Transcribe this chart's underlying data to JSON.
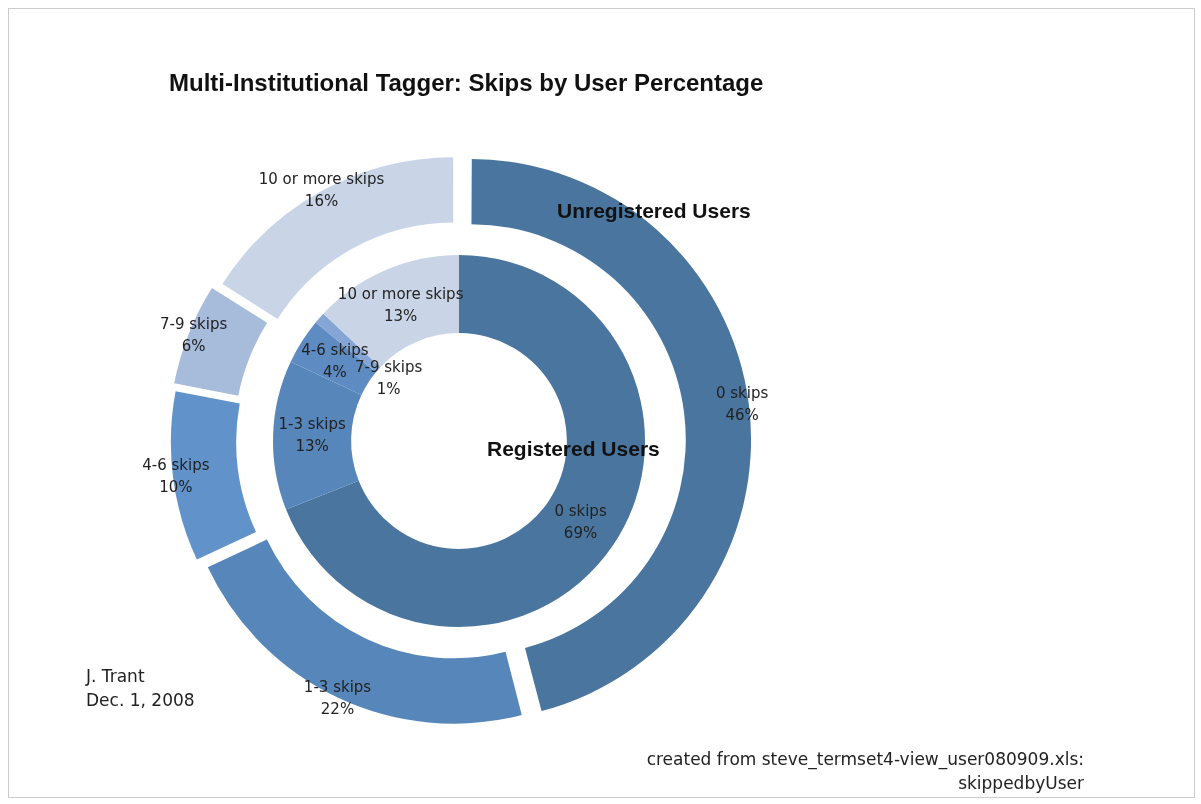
{
  "chart_data": {
    "type": "donut",
    "title": "Multi-Institutional Tagger: Skips by User Percentage",
    "categories": [
      "0 skips",
      "1-3 skips",
      "4-6 skips",
      "7-9 skips",
      "10 or more skips"
    ],
    "series": [
      {
        "name": "Unregistered Users",
        "values": [
          46,
          22,
          10,
          6,
          16
        ],
        "value_labels": [
          "46%",
          "22%",
          "10%",
          "6%",
          "16%"
        ],
        "colors": [
          "#49759f",
          "#5686ba",
          "#6192c9",
          "#a7bbdb",
          "#c9d5e7"
        ]
      },
      {
        "name": "Registered Users",
        "values": [
          69,
          13,
          4,
          1,
          13
        ],
        "value_labels": [
          "69%",
          "13%",
          "4%",
          "1%",
          "13%"
        ],
        "colors": [
          "#49759f",
          "#5686ba",
          "#5d8bc2",
          "#85a6d4",
          "#c9d5e7"
        ]
      }
    ],
    "data_labels": true,
    "annotations": [
      "J. Trant\nDec. 1, 2008",
      "created from steve_termset4-view_user080909.xls:\nskippedbyUser"
    ]
  }
}
